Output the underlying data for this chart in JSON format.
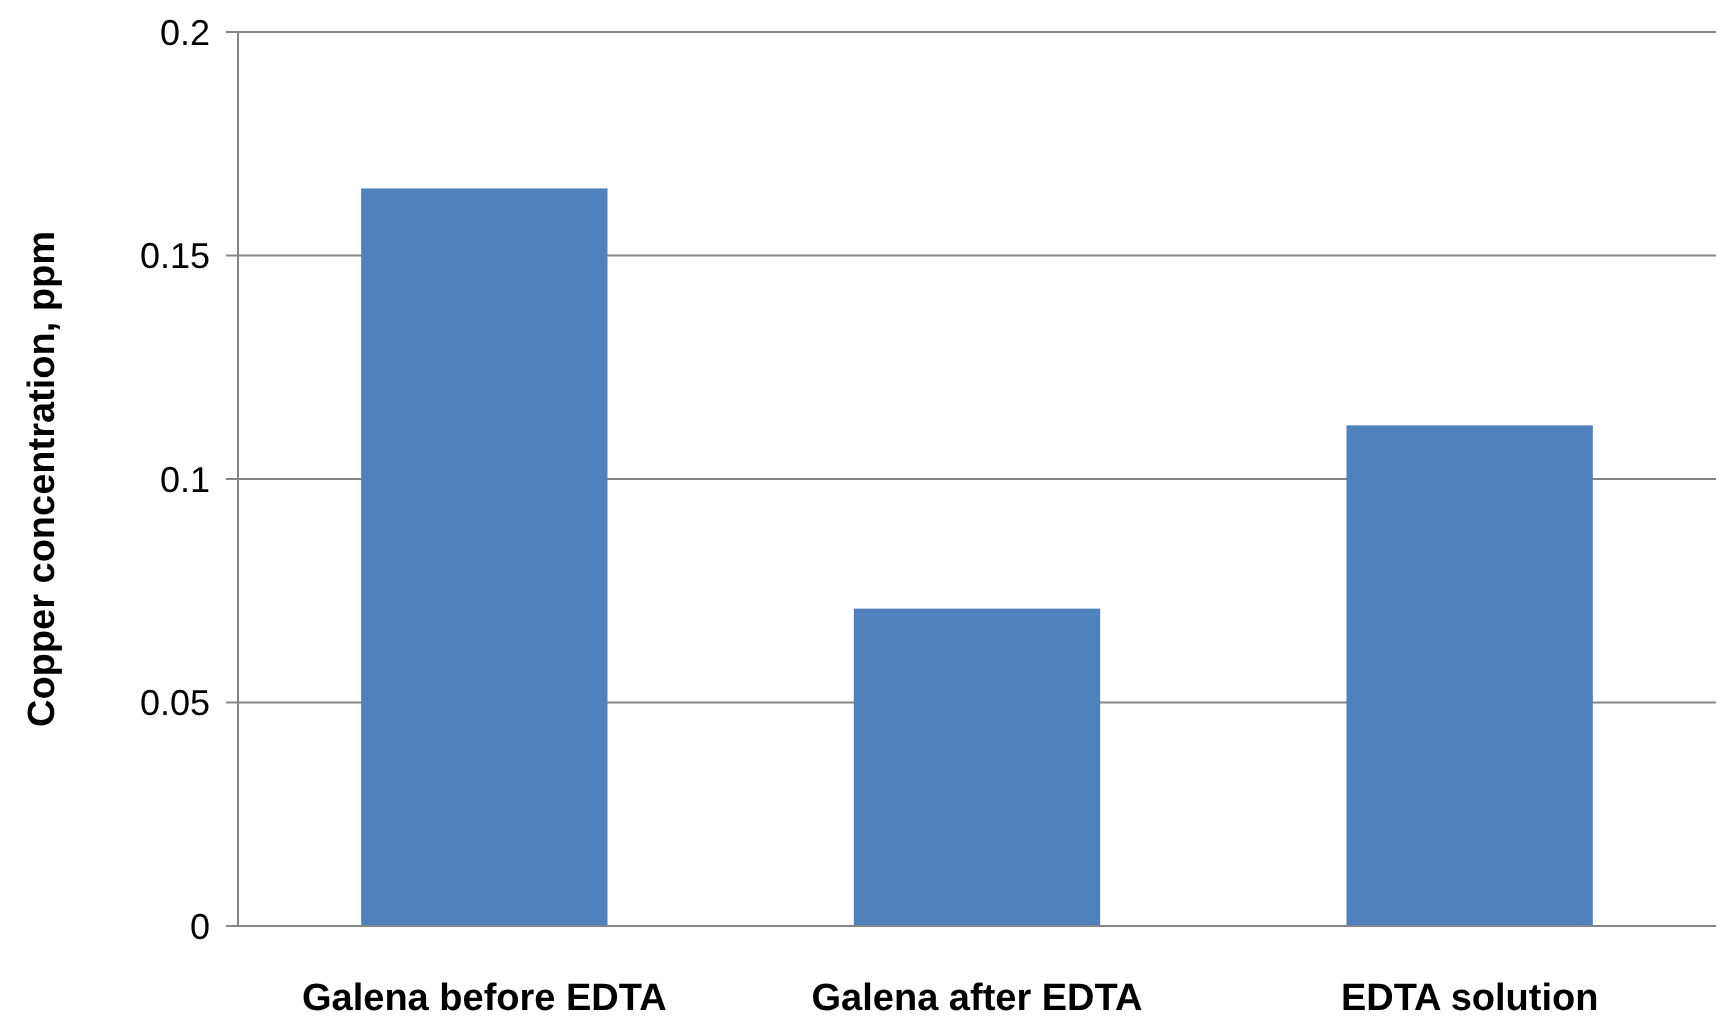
{
  "chart_data": {
    "type": "bar",
    "ylabel": "Copper concentration, ppm",
    "categories": [
      "Galena before EDTA",
      "Galena after EDTA",
      "EDTA solution"
    ],
    "values": [
      0.165,
      0.071,
      0.112
    ],
    "color": "#4f81bd",
    "ylim": [
      0,
      0.2
    ],
    "yticks": [
      0,
      0.05,
      0.1,
      0.15,
      0.2
    ],
    "grid": "y"
  }
}
